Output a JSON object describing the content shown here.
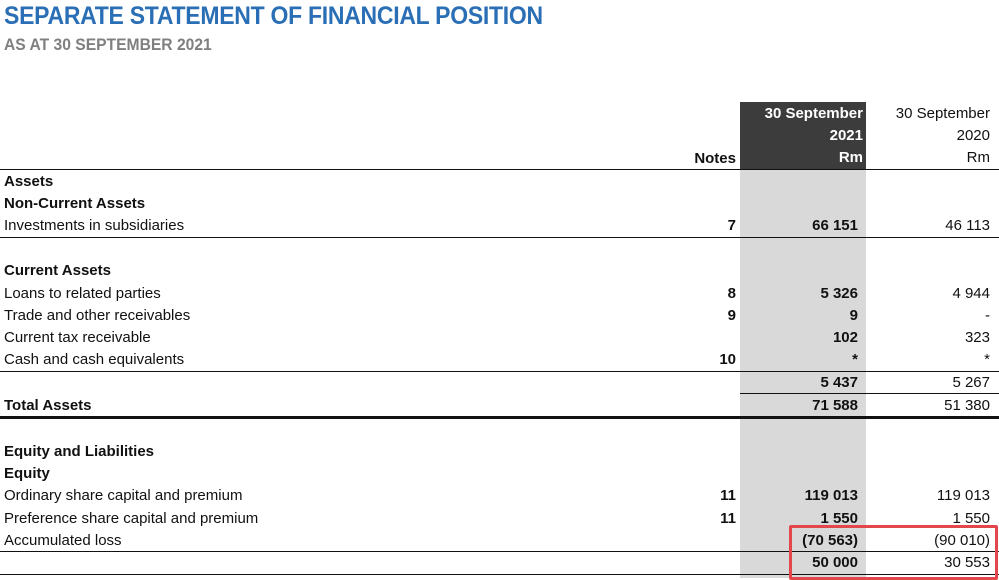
{
  "header": {
    "title": "SEPARATE STATEMENT OF FINANCIAL POSITION",
    "subtitle": "AS AT 30 SEPTEMBER 2021"
  },
  "columns": {
    "notes": "Notes",
    "current": [
      "30 September",
      "2021",
      "Rm"
    ],
    "previous": [
      "30 September",
      "2020",
      "Rm"
    ]
  },
  "rows": {
    "assets": {
      "label": "Assets"
    },
    "non_current_assets": {
      "label": "Non-Current Assets"
    },
    "investments": {
      "label": "Investments in subsidiaries",
      "note": "7",
      "cur": "66 151",
      "prev": "46 113"
    },
    "current_assets": {
      "label": "Current Assets"
    },
    "loans": {
      "label": "Loans to related parties",
      "note": "8",
      "cur": "5 326",
      "prev": "4 944"
    },
    "trade": {
      "label": "Trade and other receivables",
      "note": "9",
      "cur": "9",
      "prev": "-"
    },
    "tax": {
      "label": "Current tax receivable",
      "note": "",
      "cur": "102",
      "prev": "323"
    },
    "cash": {
      "label": "Cash and cash equivalents",
      "note": "10",
      "cur": "*",
      "prev": "*"
    },
    "current_subtotal": {
      "cur": "5 437",
      "prev": "5 267"
    },
    "total_assets": {
      "label": "Total Assets",
      "cur": "71 588",
      "prev": "51 380"
    },
    "equity_liabilities": {
      "label": "Equity and Liabilities"
    },
    "equity": {
      "label": "Equity"
    },
    "ordinary": {
      "label": "Ordinary share capital and premium",
      "note": "11",
      "cur": "119 013",
      "prev": "119 013"
    },
    "preference": {
      "label": "Preference share capital and premium",
      "note": "11",
      "cur": "1 550",
      "prev": "1 550"
    },
    "accumulated": {
      "label": "Accumulated loss",
      "note": "",
      "cur": "(70 563)",
      "prev": "(90 010)"
    },
    "equity_total": {
      "cur": "50 000",
      "prev": "30 553"
    }
  },
  "colors": {
    "title": "#2a6fb5",
    "subtitle": "#7f7f7f",
    "header_band": "#3c3c3c",
    "column_band": "#d9d9d9",
    "highlight": "#e3474b"
  }
}
